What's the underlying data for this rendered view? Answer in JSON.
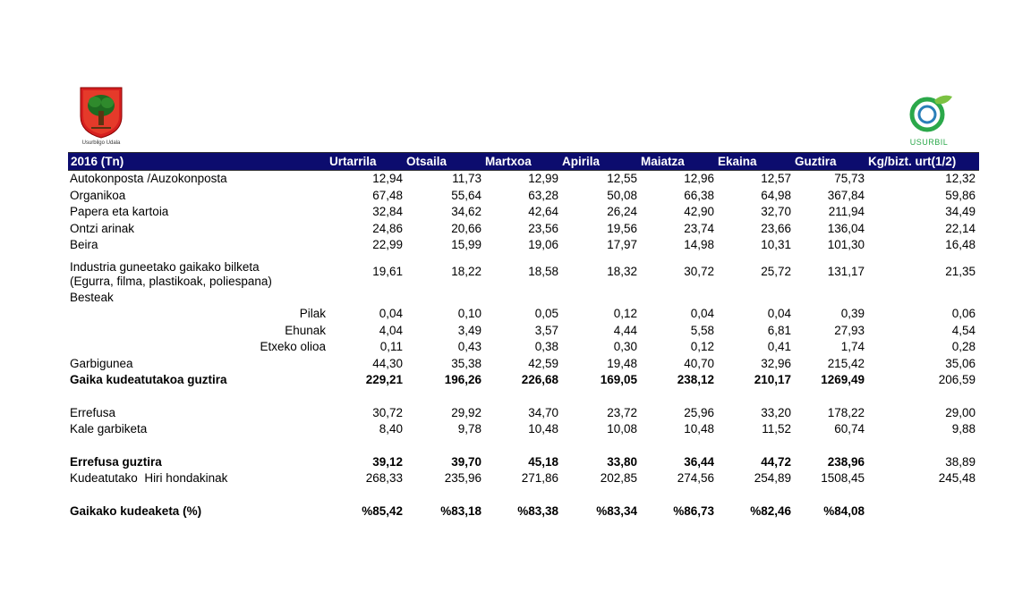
{
  "logos": {
    "left_caption": "Usurbilgo Udala",
    "right_caption": "USURBIL"
  },
  "colors": {
    "header_bg": "#0c0c6e",
    "header_text": "#ffffff",
    "usurbil_green": "#2ba84a"
  },
  "table": {
    "headers": [
      "2016 (Tn)",
      "Urtarrila",
      "Otsaila",
      "Martxoa",
      "Apirila",
      "Maiatza",
      "Ekaina",
      "Guztira",
      "Kg/bizt. urt(1/2)"
    ],
    "rows": [
      {
        "label": "Autokonposta /Auzokonposta",
        "values": [
          "12,94",
          "11,73",
          "12,99",
          "12,55",
          "12,96",
          "12,57",
          "75,73",
          "12,32"
        ]
      },
      {
        "label": "Organikoa",
        "values": [
          "67,48",
          "55,64",
          "63,28",
          "50,08",
          "66,38",
          "64,98",
          "367,84",
          "59,86"
        ]
      },
      {
        "label": "Papera eta kartoia",
        "values": [
          "32,84",
          "34,62",
          "42,64",
          "26,24",
          "42,90",
          "32,70",
          "211,94",
          "34,49"
        ]
      },
      {
        "label": "Ontzi arinak",
        "values": [
          "24,86",
          "20,66",
          "23,56",
          "19,56",
          "23,74",
          "23,66",
          "136,04",
          "22,14"
        ]
      },
      {
        "label": "Beira",
        "values": [
          "22,99",
          "15,99",
          "19,06",
          "17,97",
          "14,98",
          "10,31",
          "101,30",
          "16,48"
        ]
      }
    ],
    "industria": {
      "label_line1": "Industria guneetako gaikako bilketa",
      "label_line2": "(Egurra, filma, plastikoak, poliespana)",
      "values": [
        "19,61",
        "18,22",
        "18,58",
        "18,32",
        "30,72",
        "25,72",
        "131,17",
        "21,35"
      ]
    },
    "besteak_label": "Besteak",
    "besteak_rows": [
      {
        "label": "Pilak",
        "values": [
          "0,04",
          "0,10",
          "0,05",
          "0,12",
          "0,04",
          "0,04",
          "0,39",
          "0,06"
        ]
      },
      {
        "label": "Ehunak",
        "values": [
          "4,04",
          "3,49",
          "3,57",
          "4,44",
          "5,58",
          "6,81",
          "27,93",
          "4,54"
        ]
      },
      {
        "label": "Etxeko olioa",
        "values": [
          "0,11",
          "0,43",
          "0,38",
          "0,30",
          "0,12",
          "0,41",
          "1,74",
          "0,28"
        ]
      }
    ],
    "garbigunea": {
      "label": "Garbigunea",
      "values": [
        "44,30",
        "35,38",
        "42,59",
        "19,48",
        "40,70",
        "32,96",
        "215,42",
        "35,06"
      ]
    },
    "gaika_total": {
      "label": "Gaika kudeatutakoa guztira",
      "values": [
        "229,21",
        "196,26",
        "226,68",
        "169,05",
        "238,12",
        "210,17",
        "1269,49",
        "206,59"
      ]
    },
    "errefusa": {
      "label": "Errefusa",
      "values": [
        "30,72",
        "29,92",
        "34,70",
        "23,72",
        "25,96",
        "33,20",
        "178,22",
        "29,00"
      ]
    },
    "kale": {
      "label": "Kale garbiketa",
      "values": [
        "8,40",
        "9,78",
        "10,48",
        "10,08",
        "10,48",
        "11,52",
        "60,74",
        "9,88"
      ]
    },
    "errefusa_total": {
      "label": "Errefusa guztira",
      "values": [
        "39,12",
        "39,70",
        "45,18",
        "33,80",
        "36,44",
        "44,72",
        "238,96",
        "38,89"
      ]
    },
    "hiri": {
      "label": "Kudeatutako  Hiri hondakinak",
      "values": [
        "268,33",
        "235,96",
        "271,86",
        "202,85",
        "274,56",
        "254,89",
        "1508,45",
        "245,48"
      ]
    },
    "gaikako_pct": {
      "label": "Gaikako kudeaketa (%)",
      "values": [
        "%85,42",
        "%83,18",
        "%83,38",
        "%83,34",
        "%86,73",
        "%82,46",
        "%84,08",
        ""
      ]
    }
  }
}
